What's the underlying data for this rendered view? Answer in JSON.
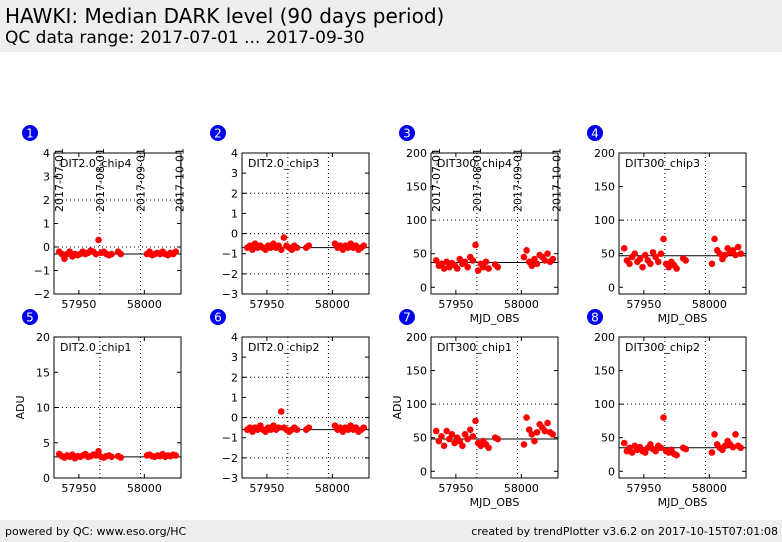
{
  "header": {
    "title": "HAWKI: Median DARK level (90 days period)",
    "subtitle": "QC data range: 2017-07-01 ... 2017-09-30"
  },
  "footer": {
    "left": "powered by QC: www.eso.org/HC",
    "right": "created by trendPlotter v3.6.2 on 2017-10-15T07:01:08"
  },
  "date_labels": [
    "2017-07-01",
    "2017-08-01",
    "2017-09-01",
    "2017-10-01"
  ],
  "x_axis_label": "MJD_OBS",
  "y_axis_label": "ADU",
  "colors": {
    "points": "#ff0000",
    "badge": "#0000ee",
    "reference_line": "#000000"
  },
  "chart_data": [
    {
      "type": "scatter",
      "badge": "1",
      "label": "DIT2.0_chip4",
      "xlim": [
        57931,
        58028
      ],
      "ylim": [
        -2,
        4
      ],
      "yticks": [
        "4",
        "3",
        "2",
        "1",
        "0",
        "−1",
        "−2"
      ],
      "xticks": [
        "57950",
        "58000"
      ],
      "ref": -0.3,
      "x": [
        57935,
        57937,
        57939,
        57941,
        57943,
        57945,
        57947,
        57949,
        57951,
        57953,
        57955,
        57957,
        57959,
        57961,
        57963,
        57965,
        57967,
        57969,
        57971,
        57973,
        57975,
        57980,
        57982,
        58002,
        58004,
        58006,
        58008,
        58010,
        58012,
        58014,
        58016,
        58018,
        58020,
        58022,
        58024
      ],
      "y": [
        -0.2,
        -0.3,
        -0.5,
        -0.3,
        -0.2,
        -0.4,
        -0.3,
        -0.35,
        -0.3,
        -0.2,
        -0.3,
        -0.25,
        -0.15,
        -0.2,
        -0.3,
        0.3,
        -0.25,
        -0.2,
        -0.3,
        -0.35,
        -0.3,
        -0.2,
        -0.3,
        -0.3,
        -0.2,
        -0.35,
        -0.3,
        -0.25,
        -0.3,
        -0.2,
        -0.3,
        -0.35,
        -0.25,
        -0.3,
        -0.2
      ]
    },
    {
      "type": "scatter",
      "badge": "2",
      "label": "DIT2.0_chip3",
      "xlim": [
        57931,
        58028
      ],
      "ylim": [
        -3,
        4
      ],
      "yticks": [
        "4",
        "3",
        "2",
        "1",
        "0",
        "−1",
        "−2",
        "−3"
      ],
      "xticks": [
        "57950",
        "58000"
      ],
      "ref": -0.7,
      "x": [
        57935,
        57937,
        57939,
        57941,
        57943,
        57945,
        57947,
        57949,
        57951,
        57953,
        57955,
        57957,
        57959,
        57961,
        57963,
        57965,
        57967,
        57969,
        57971,
        57973,
        57980,
        57982,
        58002,
        58004,
        58006,
        58008,
        58010,
        58012,
        58014,
        58016,
        58018,
        58020,
        58022,
        58024
      ],
      "y": [
        -0.7,
        -0.6,
        -0.8,
        -0.5,
        -0.7,
        -0.6,
        -0.7,
        -0.8,
        -0.6,
        -0.7,
        -0.5,
        -0.7,
        -0.6,
        -0.8,
        -0.2,
        -0.6,
        -0.7,
        -0.8,
        -0.6,
        -0.7,
        -0.7,
        -0.6,
        -0.5,
        -0.7,
        -0.6,
        -0.8,
        -0.6,
        -0.7,
        -0.5,
        -0.7,
        -0.6,
        -0.8,
        -0.7,
        -0.6
      ]
    },
    {
      "type": "scatter",
      "badge": "3",
      "label": "DIT300_chip4",
      "xlim": [
        57931,
        58028
      ],
      "ylim": [
        -10,
        200
      ],
      "yticks": [
        "200",
        "150",
        "100",
        "50",
        "0"
      ],
      "xticks": [
        "57950",
        "58000"
      ],
      "ref": 37,
      "x": [
        57935,
        57937,
        57939,
        57941,
        57943,
        57945,
        57947,
        57949,
        57951,
        57953,
        57955,
        57957,
        57959,
        57961,
        57963,
        57965,
        57967,
        57969,
        57971,
        57973,
        57975,
        57980,
        57982,
        58002,
        58004,
        58006,
        58008,
        58010,
        58012,
        58014,
        58016,
        58018,
        58020,
        58022,
        58024
      ],
      "y": [
        40,
        32,
        35,
        28,
        38,
        30,
        36,
        33,
        28,
        42,
        35,
        38,
        30,
        45,
        40,
        63,
        25,
        35,
        30,
        38,
        28,
        34,
        30,
        45,
        55,
        38,
        32,
        42,
        35,
        48,
        45,
        40,
        50,
        38,
        42
      ]
    },
    {
      "type": "scatter",
      "badge": "4",
      "label": "DIT300_chip3",
      "xlim": [
        57931,
        58028
      ],
      "ylim": [
        -10,
        200
      ],
      "yticks": [
        "200",
        "150",
        "100",
        "50",
        "0"
      ],
      "xticks": [
        "57950",
        "58000"
      ],
      "ref": 47,
      "x": [
        57935,
        57937,
        57939,
        57941,
        57943,
        57945,
        57947,
        57949,
        57951,
        57953,
        57955,
        57957,
        57959,
        57961,
        57963,
        57965,
        57967,
        57969,
        57971,
        57973,
        57975,
        57980,
        57982,
        58002,
        58004,
        58006,
        58008,
        58010,
        58012,
        58014,
        58016,
        58018,
        58020,
        58022,
        58024
      ],
      "y": [
        58,
        40,
        35,
        45,
        50,
        38,
        42,
        30,
        48,
        40,
        35,
        52,
        45,
        38,
        50,
        72,
        35,
        30,
        38,
        33,
        28,
        43,
        40,
        35,
        72,
        55,
        50,
        42,
        48,
        58,
        52,
        55,
        48,
        60,
        50
      ]
    },
    {
      "type": "scatter",
      "badge": "5",
      "label": "DIT2.0_chip1",
      "xlim": [
        57931,
        58028
      ],
      "ylim": [
        0,
        20
      ],
      "yticks": [
        "20",
        "15",
        "10",
        "5",
        "0"
      ],
      "xticks": [
        "57950",
        "58000"
      ],
      "ref": 3.0,
      "ylabel": "ADU",
      "x": [
        57935,
        57937,
        57939,
        57941,
        57943,
        57945,
        57947,
        57949,
        57951,
        57953,
        57955,
        57957,
        57959,
        57961,
        57963,
        57965,
        57967,
        57969,
        57971,
        57973,
        57975,
        57980,
        57982,
        58002,
        58004,
        58006,
        58008,
        58010,
        58012,
        58014,
        58016,
        58018,
        58020,
        58022,
        58024
      ],
      "y": [
        3.4,
        3.1,
        2.9,
        3.2,
        3.0,
        3.3,
        2.8,
        3.1,
        3.0,
        3.2,
        3.4,
        3.0,
        3.1,
        3.3,
        3.2,
        3.8,
        3.0,
        2.9,
        3.1,
        3.2,
        3.0,
        3.1,
        2.9,
        3.2,
        3.3,
        3.1,
        3.0,
        3.2,
        3.1,
        3.4,
        3.0,
        3.2,
        3.1,
        3.3,
        3.2
      ]
    },
    {
      "type": "scatter",
      "badge": "6",
      "label": "DIT2.0_chip2",
      "xlim": [
        57931,
        58028
      ],
      "ylim": [
        -3,
        4
      ],
      "yticks": [
        "4",
        "3",
        "2",
        "1",
        "0",
        "−1",
        "−2",
        "−3"
      ],
      "xticks": [
        "57950",
        "58000"
      ],
      "ref": -0.6,
      "x": [
        57935,
        57937,
        57939,
        57941,
        57943,
        57945,
        57947,
        57949,
        57951,
        57953,
        57955,
        57957,
        57959,
        57961,
        57963,
        57965,
        57967,
        57969,
        57971,
        57973,
        57980,
        57982,
        58002,
        58004,
        58006,
        58008,
        58010,
        58012,
        58014,
        58016,
        58018,
        58020,
        58022,
        58024
      ],
      "y": [
        -0.6,
        -0.5,
        -0.7,
        -0.5,
        -0.6,
        -0.4,
        -0.6,
        -0.7,
        -0.5,
        -0.6,
        -0.4,
        -0.6,
        -0.5,
        0.3,
        -0.5,
        -0.6,
        -0.7,
        -0.6,
        -0.5,
        -0.6,
        -0.6,
        -0.5,
        -0.4,
        -0.6,
        -0.5,
        -0.7,
        -0.5,
        -0.6,
        -0.4,
        -0.6,
        -0.5,
        -0.7,
        -0.6,
        -0.5
      ]
    },
    {
      "type": "scatter",
      "badge": "7",
      "label": "DIT300_chip1",
      "xlim": [
        57931,
        58028
      ],
      "ylim": [
        -10,
        200
      ],
      "yticks": [
        "200",
        "150",
        "100",
        "50",
        "0"
      ],
      "xticks": [
        "57950",
        "58000"
      ],
      "ref": 48,
      "ylabel": "ADU",
      "x": [
        57935,
        57937,
        57939,
        57941,
        57943,
        57945,
        57947,
        57949,
        57951,
        57953,
        57955,
        57957,
        57959,
        57961,
        57963,
        57965,
        57967,
        57969,
        57971,
        57973,
        57975,
        57980,
        57982,
        58002,
        58004,
        58006,
        58008,
        58010,
        58012,
        58014,
        58016,
        58018,
        58020,
        58022,
        58024
      ],
      "y": [
        60,
        45,
        52,
        38,
        60,
        48,
        55,
        42,
        50,
        45,
        38,
        55,
        48,
        62,
        52,
        75,
        42,
        38,
        45,
        40,
        35,
        50,
        48,
        40,
        80,
        62,
        55,
        45,
        58,
        70,
        65,
        60,
        72,
        58,
        55
      ]
    },
    {
      "type": "scatter",
      "badge": "8",
      "label": "DIT300_chip2",
      "xlim": [
        57931,
        58028
      ],
      "ylim": [
        -10,
        200
      ],
      "yticks": [
        "200",
        "150",
        "100",
        "50",
        "0"
      ],
      "xticks": [
        "57950",
        "58000"
      ],
      "ref": 35,
      "x": [
        57935,
        57937,
        57939,
        57941,
        57943,
        57945,
        57947,
        57949,
        57951,
        57953,
        57955,
        57957,
        57959,
        57961,
        57963,
        57965,
        57967,
        57969,
        57971,
        57973,
        57975,
        57980,
        57982,
        58002,
        58004,
        58006,
        58008,
        58010,
        58012,
        58014,
        58016,
        58018,
        58020,
        58022,
        58024
      ],
      "y": [
        42,
        30,
        35,
        28,
        38,
        32,
        36,
        30,
        28,
        35,
        40,
        33,
        30,
        38,
        35,
        80,
        30,
        28,
        32,
        26,
        24,
        35,
        33,
        28,
        55,
        40,
        35,
        32,
        38,
        45,
        40,
        36,
        55,
        38,
        35
      ]
    }
  ]
}
